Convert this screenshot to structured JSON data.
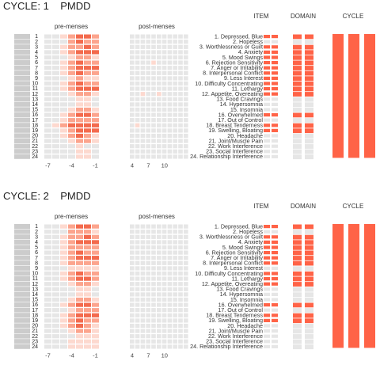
{
  "colors": {
    "accent": "#ff6347",
    "empty": "#e6e6e6",
    "stripe": "#cccccc",
    "level_colors": [
      "#e6e6e6",
      "#fdd9cf",
      "#fca48d",
      "#f36a4d"
    ]
  },
  "chart_data": [
    {
      "type": "heatmap",
      "title": "CYCLE: 1    PMDD",
      "pre_label": "pre-menses",
      "post_label": "post-menses",
      "item_header": "ITEM",
      "domain_header": "DOMAIN",
      "cycle_header": "CYCLE",
      "row_numbers": [
        "1",
        "2",
        "3",
        "4",
        "5",
        "6",
        "7",
        "8",
        "9",
        "10",
        "11",
        "12",
        "13",
        "14",
        "15",
        "16",
        "17",
        "18",
        "19",
        "20",
        "21",
        "22",
        "23",
        "24"
      ],
      "item_labels": [
        "1. Depressed, Blue",
        "2. Hopeless",
        "3. Worthlessness or Guilt",
        "4. Anxiety",
        "5. Mood Swings",
        "6. Rejection Sensitivity",
        "7. Anger or Irritability",
        "8. Interpersonal Conflict",
        "9. Less Interest",
        "10. Difficulty Concentrating",
        "11. Lethargy",
        "12. Appetite, Overeating",
        "13. Food Cravings",
        "14. Hypersomnia",
        "15. Insomnia",
        "16. Overwhelmed",
        "17. Out of Control",
        "18. Breast Tenderness",
        "19. Swelling, Bloating",
        "20. Headache",
        "21. Joint/Muscle Pain",
        "22. Work Interference",
        "23. Social Interference",
        "24. Relationship Interference"
      ],
      "pre_ticks": [
        "-7",
        "-4",
        "-1"
      ],
      "post_ticks": [
        "4",
        "7",
        "10"
      ],
      "pre_heat": [
        "0012332",
        "0002322",
        "0012232",
        "0012333",
        "0001221",
        "0012322",
        "0012333",
        "0012322",
        "0001211",
        "0012322",
        "0012333",
        "0001221",
        "0000110",
        "0000110",
        "0001221",
        "0012332",
        "0012222",
        "0123333",
        "0012333",
        "0012321",
        "0001221",
        "0000100",
        "0000110",
        "0000110"
      ],
      "post_heat": [
        "00000000000",
        "00000000000",
        "00000000000",
        "00000000000",
        "00000000000",
        "00001000000",
        "00000000000",
        "00000000000",
        "00000000000",
        "00000000000",
        "00000000000",
        "00100100000",
        "00000000000",
        "00000000000",
        "00000000000",
        "00000000000",
        "00000000000",
        "01000000000",
        "00000000000",
        "00000000000",
        "00000000000",
        "00000000000",
        "00000000000",
        "00000000000"
      ],
      "item_flags": [
        1,
        0,
        1,
        1,
        1,
        1,
        1,
        1,
        1,
        1,
        1,
        1,
        0,
        0,
        0,
        1,
        0,
        1,
        1,
        0,
        0,
        0,
        0,
        0
      ],
      "domain_flags": [
        1,
        0,
        1,
        1,
        1,
        1,
        1,
        1,
        1,
        1,
        1,
        1,
        0,
        0,
        0,
        1,
        0,
        1,
        1,
        0,
        0,
        0,
        0,
        0
      ],
      "cycle_flags": [
        1,
        1,
        1
      ]
    },
    {
      "type": "heatmap",
      "title": "CYCLE: 2    PMDD",
      "pre_label": "pre-menses",
      "post_label": "post-menses",
      "item_header": "ITEM",
      "domain_header": "DOMAIN",
      "cycle_header": "CYCLE",
      "row_numbers": [
        "1",
        "2",
        "3",
        "4",
        "5",
        "6",
        "7",
        "8",
        "9",
        "10",
        "11",
        "12",
        "13",
        "14",
        "15",
        "16",
        "17",
        "18",
        "19",
        "20",
        "21",
        "22",
        "23",
        "24"
      ],
      "item_labels": [
        "1. Depressed, Blue",
        "2. Hopeless",
        "3. Worthlessness or Guilt",
        "4. Anxiety",
        "5. Mood Swings",
        "6. Rejection Sensitivity",
        "7. Anger or Irritability",
        "8. Interpersonal Conflict",
        "9. Less Interest",
        "10. Difficulty Concentrating",
        "11. Lethargy",
        "12. Appetite, Overeating",
        "13. Food Cravings",
        "14. Hypersomnia",
        "15. Insomnia",
        "16. Overwhelmed",
        "17. Out of Control",
        "18. Breast Tenderness",
        "19. Swelling, Bloating",
        "20. Headache",
        "21. Joint/Muscle Pain",
        "22. Work Interference",
        "23. Social Interference",
        "24. Relationship Interference"
      ],
      "pre_ticks": [
        "-7",
        "-4",
        "-1"
      ],
      "post_ticks": [
        "4",
        "7",
        "10"
      ],
      "pre_heat": [
        "0012332",
        "0002221",
        "0012232",
        "0012333",
        "0012222",
        "0012322",
        "0012333",
        "0012222",
        "0001111",
        "0012322",
        "0012332",
        "0001221",
        "0000110",
        "0000110",
        "0001221",
        "0012332",
        "0001222",
        "0012333",
        "0012322",
        "0012321",
        "0001221",
        "0000111",
        "0001111",
        "0001111"
      ],
      "post_heat": [
        "00000000000",
        "00000000000",
        "00000000000",
        "00000000000",
        "00000000000",
        "00000000000",
        "00000000000",
        "00000000000",
        "00000000000",
        "00000000000",
        "00000000000",
        "00000000000",
        "00000000000",
        "00000000000",
        "00000000000",
        "00000000000",
        "00000000000",
        "00000000000",
        "00000000000",
        "00000000000",
        "00000000000",
        "00000000000",
        "00000000000",
        "00000000000"
      ],
      "item_flags": [
        1,
        0,
        1,
        1,
        1,
        1,
        1,
        1,
        0,
        1,
        1,
        1,
        0,
        0,
        0,
        1,
        0,
        1,
        1,
        0,
        0,
        0,
        0,
        0
      ],
      "domain_flags": [
        1,
        0,
        1,
        1,
        1,
        1,
        1,
        1,
        0,
        1,
        1,
        1,
        0,
        0,
        0,
        1,
        0,
        1,
        1,
        0,
        0,
        0,
        0,
        0
      ],
      "cycle_flags": [
        1,
        1,
        1
      ]
    }
  ]
}
